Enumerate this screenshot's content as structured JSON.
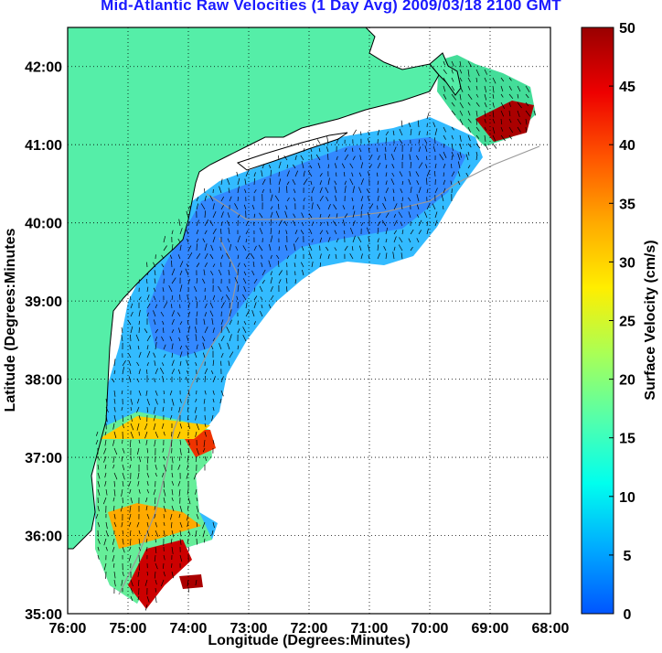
{
  "title": "Mid-Atlantic Raw Velocities (1 Day Avg) 2009/03/18 2100 GMT",
  "x_axis": {
    "label": "Longitude (Degrees:Minutes)",
    "ticks": [
      "76:00",
      "75:00",
      "74:00",
      "73:00",
      "72:00",
      "71:00",
      "70:00",
      "69:00",
      "68:00"
    ]
  },
  "y_axis": {
    "label": "Latitude (Degrees:Minutes",
    "ticks": [
      "35:00",
      "36:00",
      "37:00",
      "38:00",
      "39:00",
      "40:00",
      "41:00",
      "42:00"
    ]
  },
  "colorbar": {
    "label": "Surface Velocity (cm/s)",
    "ticks": [
      "0",
      "5",
      "10",
      "15",
      "20",
      "25",
      "30",
      "35",
      "40",
      "45",
      "50"
    ],
    "min": 0,
    "max": 50,
    "colormap": [
      "#0055ff",
      "#00aaff",
      "#00ffee",
      "#55ffaa",
      "#aaff55",
      "#ffee00",
      "#ffaa00",
      "#ff5500",
      "#ee0000",
      "#990000"
    ]
  },
  "colors": {
    "land": "#55eea8",
    "coastline": "#000000",
    "bathymetry": "#999999",
    "grid": "#000000",
    "title": "#1a1aff"
  },
  "grid": true,
  "map_extent": {
    "lon_min": -76,
    "lon_max": -68,
    "lat_min": 35,
    "lat_max": 42.5
  }
}
